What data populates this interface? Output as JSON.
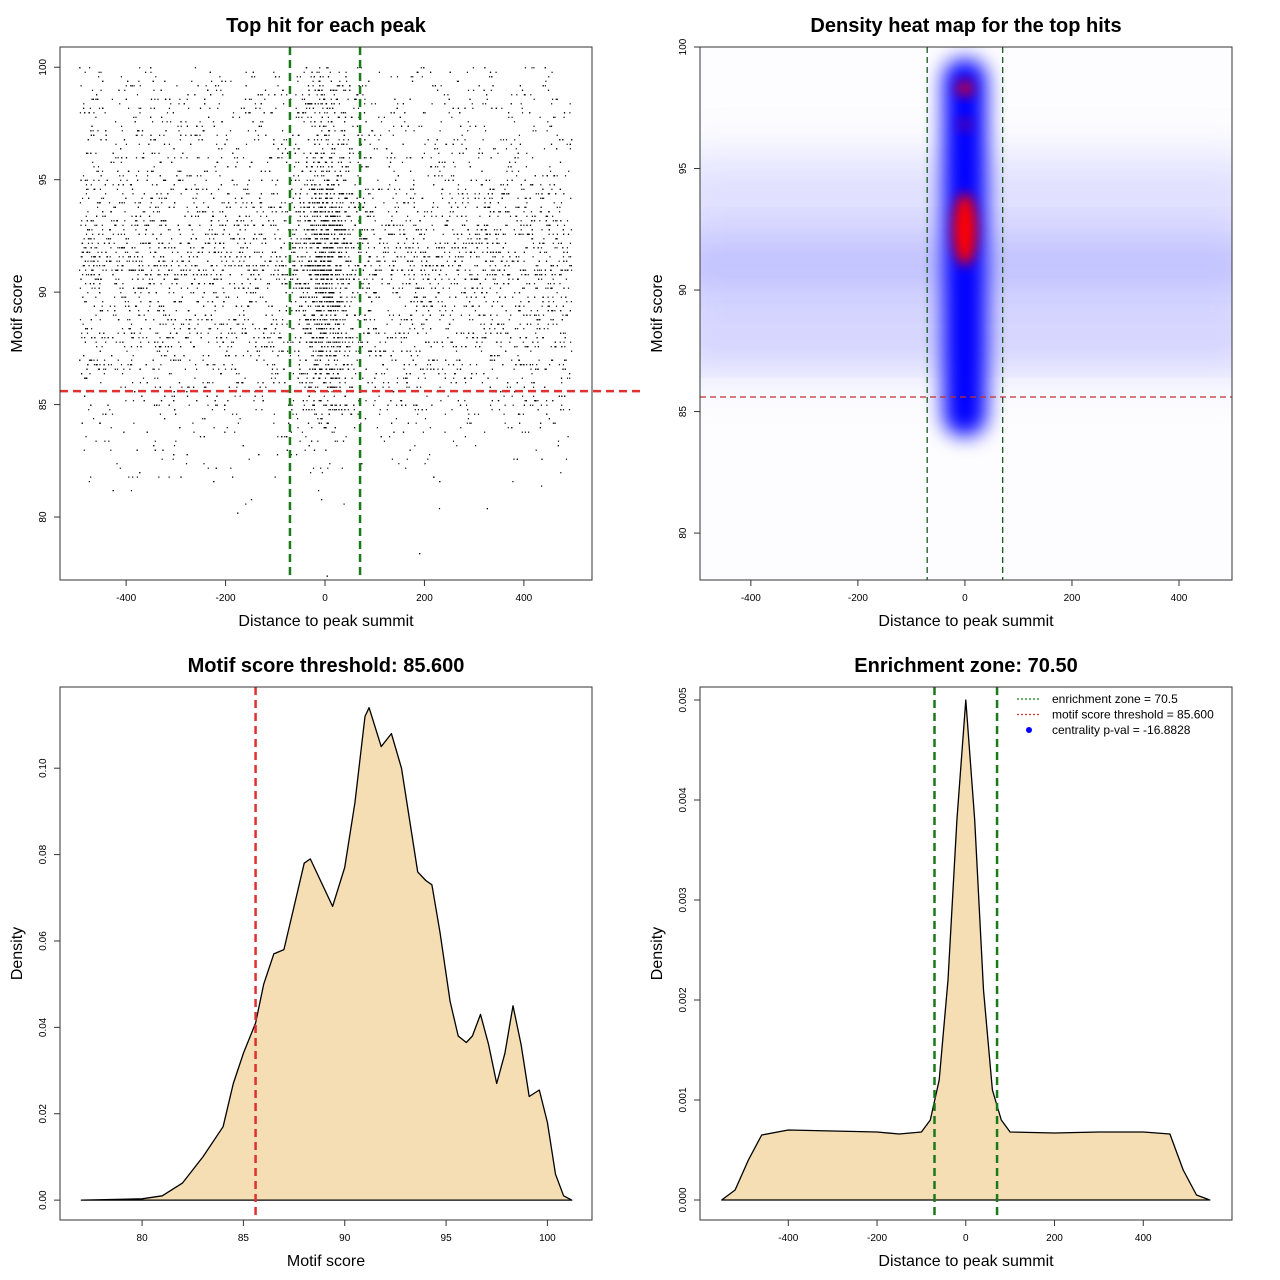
{
  "chart_data": [
    {
      "type": "scatter",
      "title": "Top hit for each peak",
      "xlabel": "Distance to peak summit",
      "ylabel": "Motif score",
      "xlim": [
        -533,
        537
      ],
      "ylim": [
        77.2,
        100.9
      ],
      "xticks": [
        -400,
        -200,
        0,
        200,
        400
      ],
      "yticks": [
        80,
        85,
        90,
        95,
        100
      ],
      "vlines": [
        {
          "x": -70.5,
          "color": "#1a7a1a",
          "style": "dashed"
        },
        {
          "x": 70.5,
          "color": "#1a7a1a",
          "style": "dashed"
        }
      ],
      "hlines": [
        {
          "y": 85.6,
          "color": "#e03030",
          "style": "dashed"
        }
      ],
      "point_color": "#000000",
      "grid": false
    },
    {
      "type": "heatmap",
      "title": "Density heat map for the top hits",
      "xlabel": "Distance to peak summit",
      "ylabel": "Motif score",
      "xlim": [
        -495,
        499
      ],
      "ylim": [
        78.07,
        100
      ],
      "xticks": [
        -400,
        -200,
        0,
        200,
        400
      ],
      "yticks": [
        80,
        85,
        90,
        95,
        100
      ],
      "colors": [
        "#ffffff",
        "#0000ff",
        "#ff0000"
      ],
      "hotspots": [
        {
          "x": 0,
          "y": 92.5,
          "level": "high"
        },
        {
          "x": 0,
          "y": 98.3,
          "level": "high"
        },
        {
          "x": 0,
          "y": 96.8,
          "level": "medium"
        }
      ],
      "vlines": [
        {
          "x": -70.5,
          "color": "#1a5a1a",
          "style": "dashed"
        },
        {
          "x": 70.5,
          "color": "#1a5a1a",
          "style": "dashed"
        }
      ],
      "hlines": [
        {
          "y": 85.6,
          "color": "#c03030",
          "style": "dashed"
        }
      ],
      "grid": false
    },
    {
      "type": "area",
      "title": "Motif score threshold: 85.600",
      "xlabel": "Motif score",
      "ylabel": "Density",
      "xlim": [
        75.95,
        102.2
      ],
      "ylim": [
        -0.0046,
        0.1188
      ],
      "xticks": [
        80,
        85,
        90,
        95,
        100
      ],
      "yticks": [
        0.0,
        0.02,
        0.04,
        0.06,
        0.08,
        0.1
      ],
      "ytick_labels": [
        "0.00",
        "0.02",
        "0.04",
        "0.06",
        "0.08",
        "0.10"
      ],
      "fill": "#f5deb3",
      "x": [
        77,
        80,
        81,
        82,
        83,
        84,
        84.5,
        85,
        85.6,
        86,
        86.5,
        87,
        87.5,
        88,
        88.3,
        89,
        89.4,
        90,
        90.5,
        91,
        91.2,
        91.8,
        92.3,
        92.8,
        93.2,
        93.6,
        94,
        94.3,
        94.7,
        95.2,
        95.6,
        96,
        96.3,
        96.7,
        97.1,
        97.5,
        97.9,
        98.3,
        98.7,
        99.1,
        99.6,
        100,
        100.4,
        100.8,
        101.2
      ],
      "y": [
        0,
        0.0003,
        0.001,
        0.004,
        0.01,
        0.017,
        0.027,
        0.034,
        0.041,
        0.05,
        0.057,
        0.058,
        0.068,
        0.078,
        0.079,
        0.072,
        0.068,
        0.077,
        0.092,
        0.112,
        0.114,
        0.105,
        0.108,
        0.1,
        0.088,
        0.076,
        0.074,
        0.073,
        0.062,
        0.046,
        0.038,
        0.0365,
        0.038,
        0.043,
        0.036,
        0.027,
        0.034,
        0.045,
        0.036,
        0.024,
        0.0255,
        0.018,
        0.006,
        0.001,
        0
      ],
      "vlines": [
        {
          "x": 85.6,
          "color": "#e03030",
          "style": "dashed"
        }
      ],
      "grid": false
    },
    {
      "type": "area",
      "title": "Enrichment zone: 70.50",
      "xlabel": "Distance to peak summit",
      "ylabel": "Density",
      "xlim": [
        -599,
        600
      ],
      "ylim": [
        -0.0002,
        0.00513
      ],
      "xticks": [
        -400,
        -200,
        0,
        200,
        400
      ],
      "yticks": [
        0,
        0.001,
        0.002,
        0.003,
        0.004,
        0.005
      ],
      "ytick_labels": [
        "0.000",
        "0.001",
        "0.002",
        "0.003",
        "0.004",
        "0.005"
      ],
      "fill": "#f5deb3",
      "x": [
        -550,
        -520,
        -490,
        -460,
        -400,
        -300,
        -200,
        -150,
        -100,
        -80,
        -60,
        -40,
        -20,
        0,
        20,
        40,
        60,
        80,
        100,
        200,
        300,
        400,
        460,
        490,
        520,
        550
      ],
      "y": [
        0,
        0.0001,
        0.0004,
        0.00065,
        0.0007,
        0.00069,
        0.00068,
        0.00066,
        0.00068,
        0.0008,
        0.0012,
        0.0022,
        0.0038,
        0.005,
        0.0038,
        0.0021,
        0.0011,
        0.0008,
        0.00068,
        0.00067,
        0.00068,
        0.00068,
        0.00066,
        0.0003,
        5e-05,
        0
      ],
      "vlines": [
        {
          "x": -70.5,
          "color": "#1a7a1a",
          "style": "dashed"
        },
        {
          "x": 70.5,
          "color": "#1a7a1a",
          "style": "dashed"
        }
      ],
      "legend": {
        "placement": "top-right",
        "entries": [
          {
            "label": "enrichment zone = 70.5",
            "color": "#1a7a1a",
            "symbol": "dotted-line"
          },
          {
            "label": "motif score threshold = 85.600",
            "color": "#e03030",
            "symbol": "dotted-line"
          },
          {
            "label": "centrality p-val = -16.8828",
            "color": "#0000ff",
            "symbol": "dot"
          }
        ]
      },
      "grid": false
    }
  ]
}
